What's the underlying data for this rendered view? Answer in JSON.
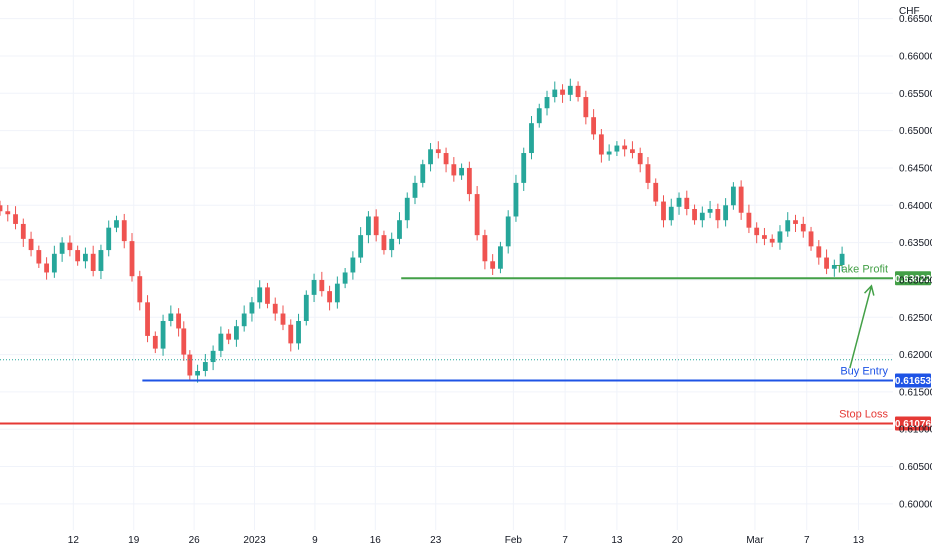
{
  "chart_data": {
    "type": "candlestick",
    "currency_label": "CHF",
    "y_ticks": [
      "0.66500",
      "0.66000",
      "0.65500",
      "0.65000",
      "0.64500",
      "0.64000",
      "0.63500",
      "0.63000",
      "0.62500",
      "0.62000",
      "0.61500",
      "0.61000",
      "0.60500",
      "0.60000"
    ],
    "y_tick_values": [
      0.665,
      0.66,
      0.655,
      0.65,
      0.645,
      0.64,
      0.635,
      0.63,
      0.625,
      0.62,
      0.615,
      0.61,
      0.605,
      0.6
    ],
    "ylim": [
      0.5965,
      0.6675
    ],
    "x_ticks": [
      {
        "label": "12",
        "day": 12
      },
      {
        "label": "19",
        "day": 19
      },
      {
        "label": "26",
        "day": 26
      },
      {
        "label": "2023",
        "day": 33
      },
      {
        "label": "9",
        "day": 40
      },
      {
        "label": "16",
        "day": 47
      },
      {
        "label": "23",
        "day": 54
      },
      {
        "label": "Feb",
        "day": 63
      },
      {
        "label": "7",
        "day": 69
      },
      {
        "label": "13",
        "day": 75
      },
      {
        "label": "20",
        "day": 82
      },
      {
        "label": "Mar",
        "day": 91
      },
      {
        "label": "7",
        "day": 97
      },
      {
        "label": "13",
        "day": 103
      }
    ],
    "xlim": [
      3.5,
      107
    ],
    "levels": [
      {
        "name": "Take Profit",
        "value": 0.63022,
        "badge": "0.63022",
        "color": "#43a047",
        "from_day": 50
      },
      {
        "name": "Buy Entry",
        "value": 0.61653,
        "badge": "0.61653",
        "color": "#1e53e5",
        "from_day": 20
      },
      {
        "name": "Stop Loss",
        "value": 0.61076,
        "badge": "0.61076",
        "color": "#e53935",
        "from_day": 3.5
      }
    ],
    "current_price": 0.6193,
    "arrow": {
      "from_day": 102,
      "from_value": 0.6182,
      "to_day": 104.5,
      "to_value": 0.6292
    },
    "up_color": "#26a69a",
    "down_color": "#ef5350",
    "closes": [
      [
        3.5,
        0.6392
      ],
      [
        4.4,
        0.6388
      ],
      [
        5.3,
        0.6375
      ],
      [
        6.2,
        0.6355
      ],
      [
        7.1,
        0.634
      ],
      [
        8.0,
        0.6322
      ],
      [
        8.9,
        0.631
      ],
      [
        9.8,
        0.6335
      ],
      [
        10.7,
        0.635
      ],
      [
        11.6,
        0.634
      ],
      [
        12.5,
        0.6325
      ],
      [
        13.4,
        0.6335
      ],
      [
        14.3,
        0.6312
      ],
      [
        15.2,
        0.634
      ],
      [
        16.1,
        0.637
      ],
      [
        17.0,
        0.638
      ],
      [
        17.9,
        0.6352
      ],
      [
        18.8,
        0.6305
      ],
      [
        19.7,
        0.627
      ],
      [
        20.6,
        0.6225
      ],
      [
        21.5,
        0.6208
      ],
      [
        22.4,
        0.6245
      ],
      [
        23.3,
        0.6255
      ],
      [
        24.2,
        0.6235
      ],
      [
        24.8,
        0.62
      ],
      [
        25.5,
        0.6172
      ],
      [
        26.4,
        0.6178
      ],
      [
        27.3,
        0.619
      ],
      [
        28.2,
        0.6205
      ],
      [
        29.1,
        0.6228
      ],
      [
        30.0,
        0.622
      ],
      [
        30.9,
        0.6238
      ],
      [
        31.8,
        0.6255
      ],
      [
        32.7,
        0.627
      ],
      [
        33.6,
        0.629
      ],
      [
        34.5,
        0.6268
      ],
      [
        35.4,
        0.6255
      ],
      [
        36.3,
        0.624
      ],
      [
        37.2,
        0.6215
      ],
      [
        38.1,
        0.6245
      ],
      [
        39.0,
        0.628
      ],
      [
        39.9,
        0.63
      ],
      [
        40.8,
        0.6285
      ],
      [
        41.7,
        0.627
      ],
      [
        42.6,
        0.6295
      ],
      [
        43.5,
        0.631
      ],
      [
        44.4,
        0.633
      ],
      [
        45.3,
        0.636
      ],
      [
        46.2,
        0.6385
      ],
      [
        47.1,
        0.636
      ],
      [
        48.0,
        0.634
      ],
      [
        48.9,
        0.6355
      ],
      [
        49.8,
        0.638
      ],
      [
        50.7,
        0.641
      ],
      [
        51.6,
        0.643
      ],
      [
        52.5,
        0.6455
      ],
      [
        53.4,
        0.6475
      ],
      [
        54.3,
        0.647
      ],
      [
        55.2,
        0.6455
      ],
      [
        56.1,
        0.644
      ],
      [
        57.0,
        0.645
      ],
      [
        57.9,
        0.6415
      ],
      [
        58.8,
        0.636
      ],
      [
        59.7,
        0.6325
      ],
      [
        60.6,
        0.6315
      ],
      [
        61.5,
        0.6345
      ],
      [
        62.4,
        0.6385
      ],
      [
        63.3,
        0.643
      ],
      [
        64.2,
        0.647
      ],
      [
        65.1,
        0.651
      ],
      [
        66.0,
        0.653
      ],
      [
        66.9,
        0.6545
      ],
      [
        67.8,
        0.6555
      ],
      [
        68.7,
        0.6548
      ],
      [
        69.6,
        0.656
      ],
      [
        70.5,
        0.6545
      ],
      [
        71.4,
        0.6518
      ],
      [
        72.3,
        0.6495
      ],
      [
        73.2,
        0.6468
      ],
      [
        74.1,
        0.6472
      ],
      [
        75.0,
        0.648
      ],
      [
        75.9,
        0.6475
      ],
      [
        76.8,
        0.647
      ],
      [
        77.7,
        0.6455
      ],
      [
        78.6,
        0.643
      ],
      [
        79.5,
        0.6405
      ],
      [
        80.4,
        0.638
      ],
      [
        81.3,
        0.6398
      ],
      [
        82.2,
        0.641
      ],
      [
        83.1,
        0.6395
      ],
      [
        84.0,
        0.638
      ],
      [
        84.9,
        0.639
      ],
      [
        85.8,
        0.6395
      ],
      [
        86.7,
        0.638
      ],
      [
        87.6,
        0.64
      ],
      [
        88.5,
        0.6425
      ],
      [
        89.4,
        0.639
      ],
      [
        90.3,
        0.637
      ],
      [
        91.2,
        0.636
      ],
      [
        92.1,
        0.6355
      ],
      [
        93.0,
        0.635
      ],
      [
        93.9,
        0.6365
      ],
      [
        94.8,
        0.638
      ],
      [
        95.7,
        0.6375
      ],
      [
        96.6,
        0.6365
      ],
      [
        97.5,
        0.6345
      ],
      [
        98.4,
        0.633
      ],
      [
        99.3,
        0.6315
      ],
      [
        100.2,
        0.632
      ],
      [
        101.1,
        0.6335
      ]
    ]
  }
}
